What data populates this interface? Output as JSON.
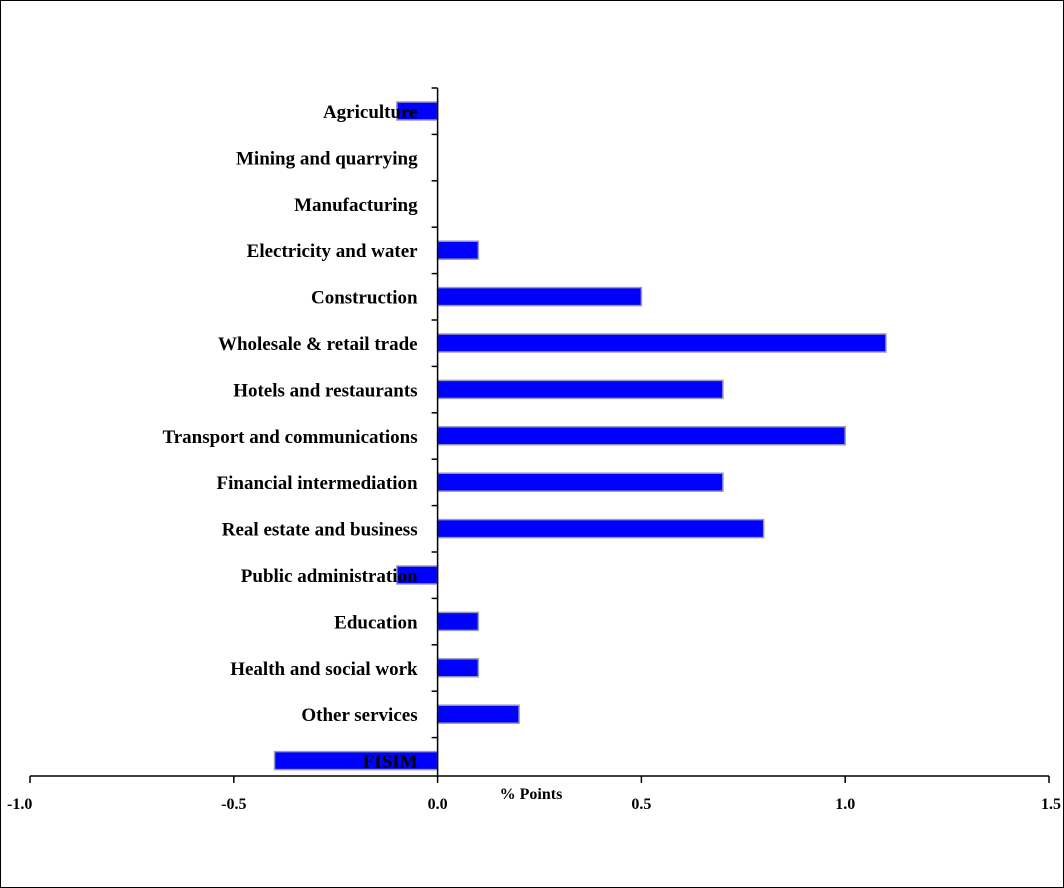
{
  "chart_data": {
    "type": "bar",
    "orientation": "horizontal",
    "categories": [
      "Agriculture",
      "Mining and quarrying",
      "Manufacturing",
      "Electricity and  water",
      "Construction",
      "Wholesale & retail trade",
      "Hotels and restaurants",
      "Transport and communications",
      "Financial intermediation",
      "Real estate and business",
      "Public administration",
      "Education",
      "Health and social work",
      "Other services",
      "FISIM"
    ],
    "values": [
      -0.1,
      0.0,
      0.0,
      0.1,
      0.5,
      1.1,
      0.7,
      1.0,
      0.7,
      0.8,
      -0.1,
      0.1,
      0.1,
      0.2,
      -0.4
    ],
    "title": "",
    "xlabel": "% Points",
    "ylabel": "",
    "xlim": [
      -1.0,
      1.5
    ],
    "xticks": [
      -1.0,
      -0.5,
      0.0,
      0.5,
      1.0,
      1.5
    ],
    "xtick_labels": [
      "-1.0",
      "-0.5",
      "0.0",
      "0.5",
      "1.0",
      "1.5"
    ],
    "grid": false,
    "legend": "none",
    "bar_color": "#0000ff",
    "bar_edge_color": "#9999bb"
  }
}
